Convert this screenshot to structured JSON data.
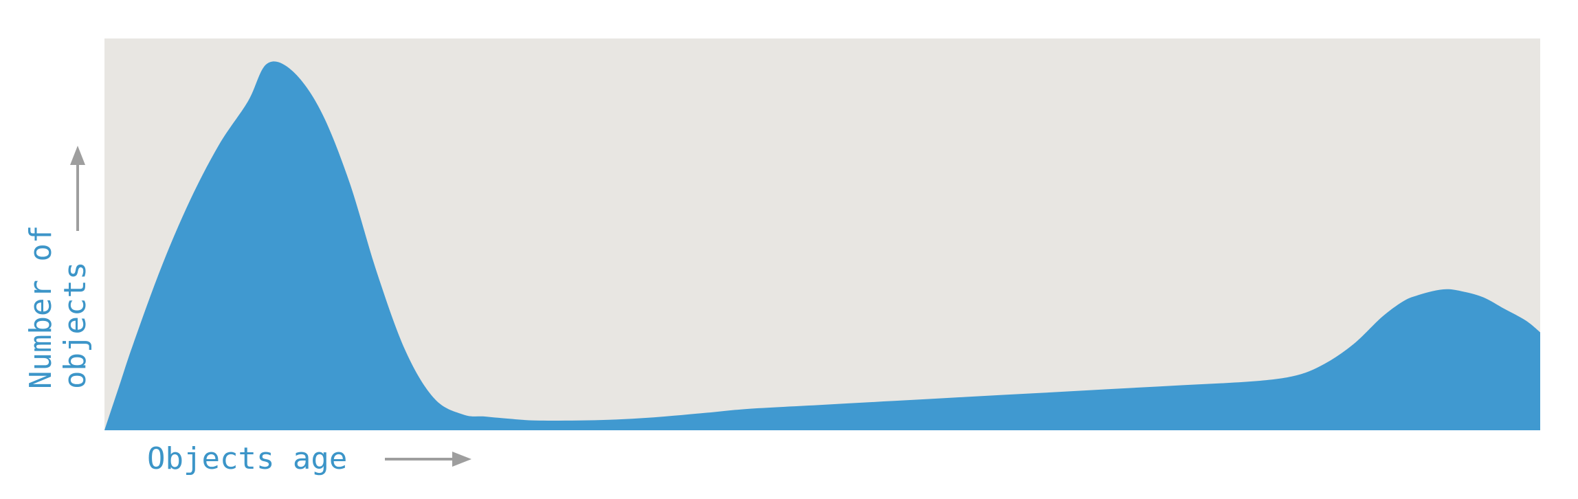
{
  "chart_data": {
    "type": "area",
    "title": "",
    "xlabel": "Objects age",
    "ylabel_lines": [
      "Number of",
      "objects"
    ],
    "colors": {
      "plot_background": "#e8e6e2",
      "area_fill": "#4099d0",
      "label_text": "#3c95c8",
      "arrow": "#9e9e9e"
    },
    "xlim": [
      0,
      100
    ],
    "ylim": [
      0,
      100
    ],
    "grid": false,
    "axis_ticks": false,
    "axis_arrows": true,
    "series": [
      {
        "x": [
          0,
          1,
          2,
          4,
          6,
          8,
          10,
          11.3,
          13,
          15,
          17,
          19,
          21,
          23,
          25,
          26.5,
          28,
          30,
          33,
          36,
          39,
          42,
          45,
          50,
          55,
          60,
          65,
          70,
          75,
          80,
          83,
          85,
          87,
          89,
          90.5,
          91.5,
          92.5,
          93.5,
          94.5,
          96,
          97.5,
          99,
          100
        ],
        "y": [
          0,
          11,
          22,
          42,
          59,
          73,
          84,
          93.5,
          92,
          82,
          64,
          40,
          20,
          8,
          4,
          3.5,
          3,
          2.5,
          2.5,
          2.8,
          3.5,
          4.5,
          5.5,
          6.5,
          7.5,
          8.5,
          9.5,
          10.5,
          11.5,
          12.5,
          14,
          17,
          22,
          29,
          33,
          34.5,
          35.5,
          36,
          35.5,
          34,
          31,
          28,
          25
        ]
      }
    ]
  }
}
